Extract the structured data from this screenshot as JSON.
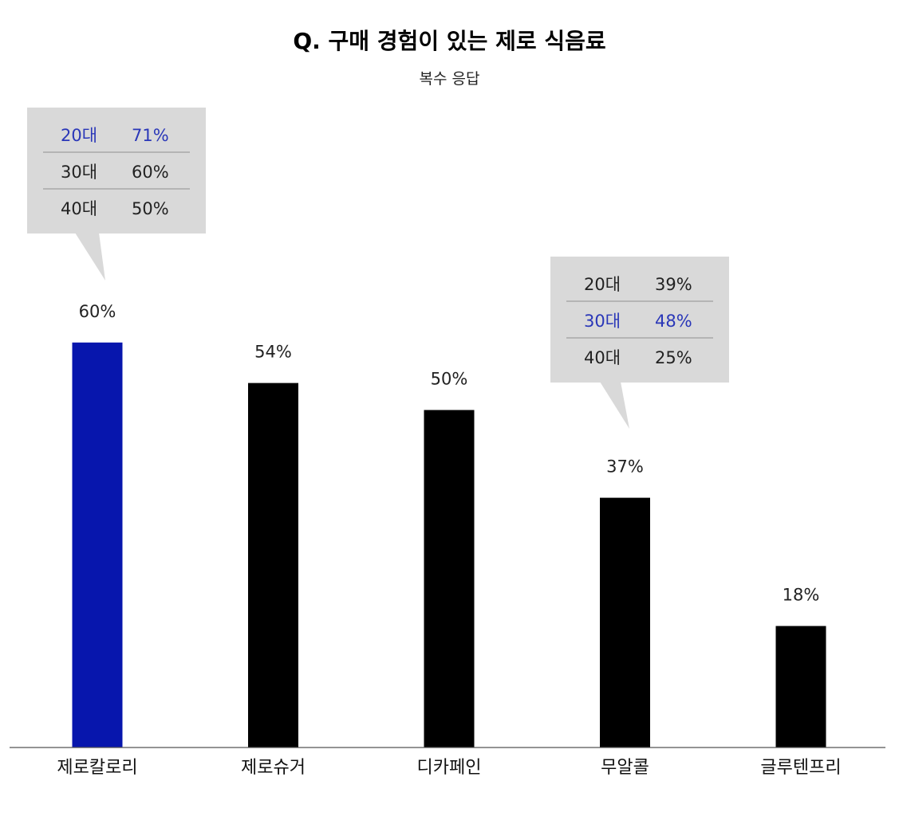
{
  "chart_data": {
    "type": "bar",
    "title": "Q. 구매 경험이 있는 제로 식음료",
    "subtitle": "복수 응답",
    "categories": [
      "제로칼로리",
      "제로슈거",
      "디카페인",
      "무알콜",
      "글루텐프리"
    ],
    "values": [
      60,
      54,
      50,
      37,
      18
    ],
    "value_labels": [
      "60%",
      "54%",
      "50%",
      "37%",
      "18%"
    ],
    "highlight_index": 0,
    "ylim": [
      0,
      100
    ],
    "grid": false,
    "colors": {
      "bar": "#000000",
      "highlight_bar": "#0716ad",
      "highlight_text": "#2a37b8",
      "callout_bg": "#d9d9d9",
      "callout_divider": "#8f8f8f",
      "axis": "#555555"
    },
    "callouts": [
      {
        "category_index": 0,
        "rows": [
          {
            "age": "20대",
            "value": 71,
            "label": "71%",
            "highlight": true
          },
          {
            "age": "30대",
            "value": 60,
            "label": "60%",
            "highlight": false
          },
          {
            "age": "40대",
            "value": 50,
            "label": "50%",
            "highlight": false
          }
        ]
      },
      {
        "category_index": 3,
        "rows": [
          {
            "age": "20대",
            "value": 39,
            "label": "39%",
            "highlight": false
          },
          {
            "age": "30대",
            "value": 48,
            "label": "48%",
            "highlight": true
          },
          {
            "age": "40대",
            "value": 25,
            "label": "25%",
            "highlight": false
          }
        ]
      }
    ]
  }
}
